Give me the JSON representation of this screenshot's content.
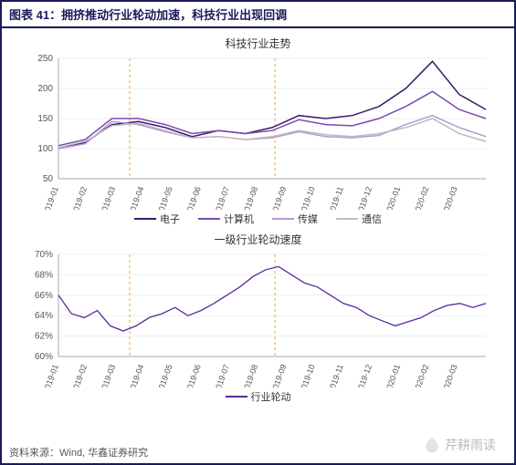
{
  "header": {
    "title": "图表 41：拥挤推动行业轮动加速，科技行业出现回调"
  },
  "footer": {
    "source": "资料来源：Wind, 华鑫证券研究"
  },
  "watermark": {
    "text": "芹耕雨读"
  },
  "x_labels": [
    "2019-01",
    "2019-02",
    "2019-03",
    "2019-04",
    "2019-05",
    "2019-06",
    "2019-07",
    "2019-08",
    "2019-09",
    "2019-10",
    "2019-11",
    "2019-12",
    "2020-01",
    "2020-02",
    "2020-03"
  ],
  "vlines": [
    2.5,
    7.6
  ],
  "chart1": {
    "title": "科技行业走势",
    "type": "line",
    "ylim": [
      50,
      250
    ],
    "ytick_step": 50,
    "line_width": 1.5,
    "grid_color": "#eeeeee",
    "background_color": "#ffffff",
    "series": [
      {
        "name": "电子",
        "color": "#3a1a6a",
        "values": [
          100,
          110,
          140,
          145,
          135,
          120,
          130,
          125,
          135,
          155,
          150,
          155,
          170,
          200,
          245,
          190,
          165
        ]
      },
      {
        "name": "计算机",
        "color": "#7a4ab0",
        "values": [
          105,
          115,
          150,
          150,
          140,
          125,
          130,
          125,
          130,
          148,
          140,
          138,
          150,
          170,
          195,
          165,
          150
        ]
      },
      {
        "name": "传媒",
        "color": "#b896d8",
        "values": [
          100,
          108,
          145,
          140,
          128,
          118,
          120,
          115,
          118,
          128,
          120,
          118,
          122,
          140,
          155,
          135,
          120
        ]
      },
      {
        "name": "通信",
        "color": "#bdbdbd",
        "values": [
          102,
          112,
          138,
          142,
          130,
          118,
          120,
          115,
          120,
          130,
          123,
          120,
          125,
          135,
          150,
          125,
          112
        ]
      }
    ]
  },
  "chart2": {
    "title": "一级行业轮动速度",
    "type": "line",
    "ylim": [
      60,
      70
    ],
    "ytick_step": 2,
    "y_suffix": "%",
    "line_width": 1.3,
    "grid_color": "#eeeeee",
    "background_color": "#ffffff",
    "series": [
      {
        "name": "行业轮动",
        "color": "#5a2a9a",
        "values": [
          66,
          64.2,
          63.8,
          64.5,
          63,
          62.5,
          63,
          63.8,
          64.2,
          64.8,
          64,
          64.5,
          65.2,
          66,
          66.8,
          67.8,
          68.5,
          68.8,
          68,
          67.2,
          66.8,
          66,
          65.2,
          64.8,
          64,
          63.5,
          63,
          63.4,
          63.8,
          64.5,
          65,
          65.2,
          64.8,
          65.2
        ]
      }
    ]
  }
}
